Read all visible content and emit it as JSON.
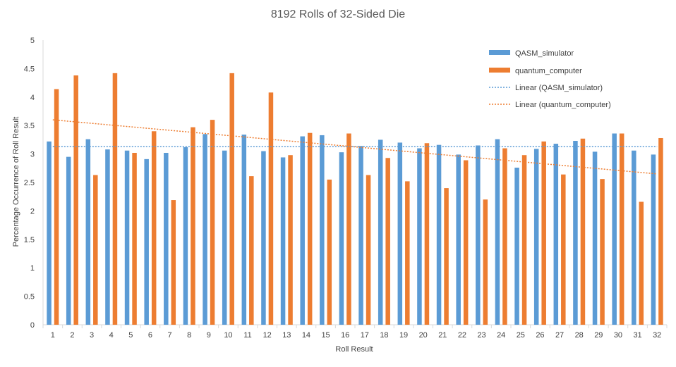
{
  "chart_data": {
    "type": "bar",
    "title": "8192 Rolls of 32-Sided Die",
    "xlabel": "Roll Result",
    "ylabel": "Percentage Occurrence of Roll Result",
    "ylim": [
      0,
      5
    ],
    "yticks": [
      "0",
      "0.5",
      "1",
      "1.5",
      "2",
      "2.5",
      "3",
      "3.5",
      "4",
      "4.5",
      "5"
    ],
    "categories": [
      "1",
      "2",
      "3",
      "4",
      "5",
      "6",
      "7",
      "8",
      "9",
      "10",
      "11",
      "12",
      "13",
      "14",
      "15",
      "16",
      "17",
      "18",
      "19",
      "20",
      "21",
      "22",
      "23",
      "24",
      "25",
      "26",
      "27",
      "28",
      "29",
      "30",
      "31",
      "32"
    ],
    "series": [
      {
        "name": "QASM_simulator",
        "color": "#5b9bd5",
        "values": [
          3.22,
          2.95,
          3.26,
          3.08,
          3.06,
          2.91,
          3.02,
          3.12,
          3.35,
          3.06,
          3.34,
          3.05,
          2.94,
          3.31,
          3.33,
          3.03,
          3.14,
          3.25,
          3.2,
          3.1,
          3.16,
          2.99,
          3.15,
          3.26,
          2.76,
          3.09,
          3.18,
          3.23,
          3.04,
          3.36,
          3.06,
          2.99
        ]
      },
      {
        "name": "quantum_computer",
        "color": "#ed7d31",
        "values": [
          4.14,
          4.38,
          2.63,
          4.42,
          3.02,
          3.4,
          2.19,
          3.47,
          3.6,
          4.42,
          2.61,
          4.08,
          2.98,
          3.37,
          2.55,
          3.36,
          2.63,
          2.93,
          2.52,
          3.19,
          2.4,
          2.89,
          2.2,
          3.1,
          2.98,
          3.22,
          2.64,
          3.27,
          2.56,
          3.36,
          2.16,
          3.28
        ]
      }
    ],
    "trendlines": [
      {
        "name": "Linear (QASM_simulator)",
        "color": "#5b9bd5",
        "start": 3.13,
        "end": 3.13
      },
      {
        "name": "Linear (quantum_computer)",
        "color": "#ed7d31",
        "start": 3.6,
        "end": 2.65
      }
    ],
    "legend_position": "top-right",
    "grid": false
  }
}
